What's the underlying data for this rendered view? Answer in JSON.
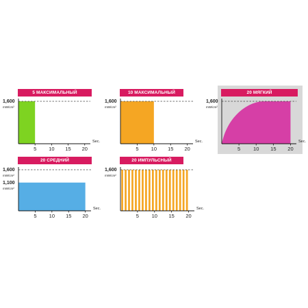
{
  "colors": {
    "title_bg": "#d81b60",
    "bg_highlight": "#d8d8d8"
  },
  "chart_data": [
    {
      "type": "area",
      "title": "5 МАКСИМАЛЬНЫЙ",
      "unit": "mW/cm²",
      "xlabel": "Sec.",
      "xticks": [
        5,
        10,
        15,
        20
      ],
      "xlim": [
        0,
        22
      ],
      "ylim": [
        0,
        1700
      ],
      "ref_line": {
        "label": "1,600",
        "value": 1600
      },
      "y_label": null,
      "shape": "flat",
      "start": 0,
      "end": 5,
      "level": 1600,
      "color": "#7ed321",
      "highlight": false
    },
    {
      "type": "area",
      "title": "10 МАКСИМАЛЬНЫЙ",
      "unit": "mW/cm²",
      "xlabel": "Sec.",
      "xticks": [
        5,
        10,
        15,
        20
      ],
      "xlim": [
        0,
        22
      ],
      "ylim": [
        0,
        1700
      ],
      "ref_line": {
        "label": "1,600",
        "value": 1600
      },
      "y_label": null,
      "shape": "flat",
      "start": 0,
      "end": 10,
      "level": 1600,
      "color": "#f5a623",
      "highlight": false
    },
    {
      "type": "area",
      "title": "20 МЯГКИЙ",
      "unit": "mW/cm²",
      "xlabel": "Sec.",
      "xticks": [
        5,
        10,
        15,
        20
      ],
      "xlim": [
        0,
        22
      ],
      "ylim": [
        0,
        1700
      ],
      "ref_line": {
        "label": "1,600",
        "value": 1600
      },
      "y_label": null,
      "shape": "ramp",
      "start": 0,
      "end": 20,
      "level": 1600,
      "color": "#d63fa6",
      "highlight": true
    },
    {
      "type": "area",
      "title": "20 СРЕДНИЙ",
      "unit": "mW/cm²",
      "xlabel": "Sec.",
      "xticks": [
        5,
        10,
        15,
        20
      ],
      "xlim": [
        0,
        22
      ],
      "ylim": [
        0,
        1700
      ],
      "ref_line": {
        "label": "1,600",
        "value": 1600
      },
      "y_label": {
        "label": "1,100",
        "value": 1100
      },
      "shape": "flat",
      "start": 0,
      "end": 20,
      "level": 1100,
      "color": "#56aee5",
      "highlight": false
    },
    {
      "type": "bar",
      "title": "20 ИМПУЛЬСНЫЙ",
      "unit": "mW/cm²",
      "xlabel": "Sec.",
      "xticks": [
        5,
        10,
        15,
        20
      ],
      "xlim": [
        0,
        22
      ],
      "ylim": [
        0,
        1700
      ],
      "ref_line": {
        "label": "1,600",
        "value": 1600
      },
      "y_label": null,
      "shape": "pulse",
      "start": 0,
      "end": 20,
      "level": 1600,
      "pulses": 20,
      "color": "#f5a623",
      "highlight": false
    }
  ]
}
